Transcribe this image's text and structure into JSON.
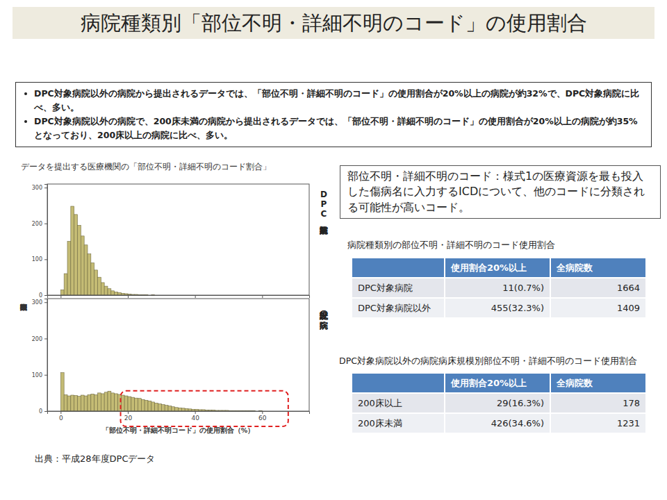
{
  "title": "病院種類別「部位不明・詳細不明のコード」の使用割合",
  "bullets": [
    "DPC対象病院以外の病院から提出されるデータでは、「部位不明・詳細不明のコード」の使用割合が20%以上の病院が約32%で、DPC対象病院に比べ、多い。",
    "DPC対象病院以外の病院で、200床未満の病院から提出されるデータでは、「部位不明・詳細不明のコード」の使用割合が20%以上の病院が約35%となっており、200床以上の病院に比べ、多い。"
  ],
  "chart_data": [
    {
      "type": "histogram",
      "title": "データを提出する医療機関の「部位不明・詳細不明のコード割合」",
      "subtitle": "DPC対象病院",
      "y_label": "医療機関数",
      "bins": [
        0,
        1,
        2,
        3,
        4,
        5,
        6,
        7,
        8,
        9,
        10,
        11,
        12,
        13,
        14,
        15,
        16,
        17,
        18,
        19,
        20,
        21,
        22,
        23,
        24,
        25,
        26,
        27,
        28,
        29,
        30,
        31,
        32,
        33,
        34,
        35,
        36,
        37,
        38,
        39,
        40,
        41,
        42,
        43,
        44,
        45,
        46,
        47,
        48,
        49,
        50,
        51,
        52,
        53,
        54,
        55,
        56,
        57,
        58,
        59,
        60,
        61,
        62,
        63,
        64,
        65,
        66,
        67,
        68,
        69,
        70
      ],
      "values": [
        15,
        60,
        150,
        248,
        225,
        195,
        165,
        140,
        115,
        90,
        70,
        50,
        35,
        25,
        18,
        12,
        9,
        7,
        5,
        4,
        3,
        2,
        2,
        1,
        1,
        1,
        0,
        1,
        0,
        0,
        0,
        0,
        0,
        0,
        0,
        0,
        0,
        0,
        0,
        0,
        0,
        0,
        0,
        0,
        0,
        0,
        0,
        0,
        0,
        0,
        0,
        0,
        0,
        0,
        0,
        0,
        0,
        0,
        0,
        0,
        0,
        0,
        0,
        0,
        0,
        0,
        0,
        0,
        0,
        0
      ],
      "color": "#c4bb74",
      "xlim": [
        -4,
        74
      ],
      "xticks": [
        0,
        20,
        40,
        60
      ],
      "ylim": [
        0,
        310
      ],
      "yticks": [
        0,
        100,
        200,
        300
      ],
      "tick_labels": "y"
    },
    {
      "type": "histogram",
      "subtitle": "上記以外の病院",
      "x_label": "「部位不明・詳細不明コード」の使用割合（%）",
      "bins": [
        0,
        1,
        2,
        3,
        4,
        5,
        6,
        7,
        8,
        9,
        10,
        11,
        12,
        13,
        14,
        15,
        16,
        17,
        18,
        19,
        20,
        21,
        22,
        23,
        24,
        25,
        26,
        27,
        28,
        29,
        30,
        31,
        32,
        33,
        34,
        35,
        36,
        37,
        38,
        39,
        40,
        41,
        42,
        43,
        44,
        45,
        46,
        47,
        48,
        49,
        50,
        51,
        52,
        53,
        54,
        55,
        56,
        57,
        58,
        59,
        60,
        61,
        62,
        63,
        64,
        65,
        66,
        67,
        68,
        69,
        70
      ],
      "values": [
        106,
        45,
        42,
        44,
        43,
        41,
        44,
        42,
        45,
        47,
        45,
        50,
        48,
        52,
        55,
        50,
        48,
        46,
        44,
        42,
        40,
        38,
        36,
        35,
        32,
        30,
        28,
        25,
        22,
        20,
        18,
        16,
        14,
        12,
        10,
        9,
        8,
        7,
        6,
        5,
        5,
        4,
        4,
        3,
        3,
        3,
        2,
        2,
        2,
        2,
        1,
        1,
        1,
        1,
        1,
        1,
        1,
        1,
        0,
        1,
        0,
        0,
        0,
        0,
        0,
        0,
        0,
        0,
        0,
        0
      ],
      "color": "#c4bb74",
      "xlim": [
        -4,
        74
      ],
      "xticks": [
        0,
        20,
        40,
        60
      ],
      "ylim": [
        0,
        310
      ],
      "yticks": [
        0,
        100,
        200,
        300
      ]
    }
  ],
  "note": "部位不明・詳細不明のコード：様式1の医療資源を最も投入した傷病名に入力するICDについて、他のコードに分類される可能性が高いコード。",
  "tables": [
    {
      "title": "病院種類別の部位不明・詳細不明のコード使用割合",
      "headers": [
        "使用割合20%以上",
        "全病院数"
      ],
      "rows": [
        [
          "DPC対象病院",
          "11(0.7%)",
          "1664"
        ],
        [
          "DPC対象病院以外",
          "455(32.3%)",
          "1409"
        ]
      ]
    },
    {
      "title": "DPC対象病院以外の病院病床規模別部位不明・詳細不明のコード使用割合",
      "headers": [
        "使用割合20%以上",
        "全病院数"
      ],
      "rows": [
        [
          "200床以上",
          "29(16.3%)",
          "178"
        ],
        [
          "200床未満",
          "426(34.6%)",
          "1231"
        ]
      ]
    }
  ],
  "source": "出典：平成28年度DPCデータ"
}
